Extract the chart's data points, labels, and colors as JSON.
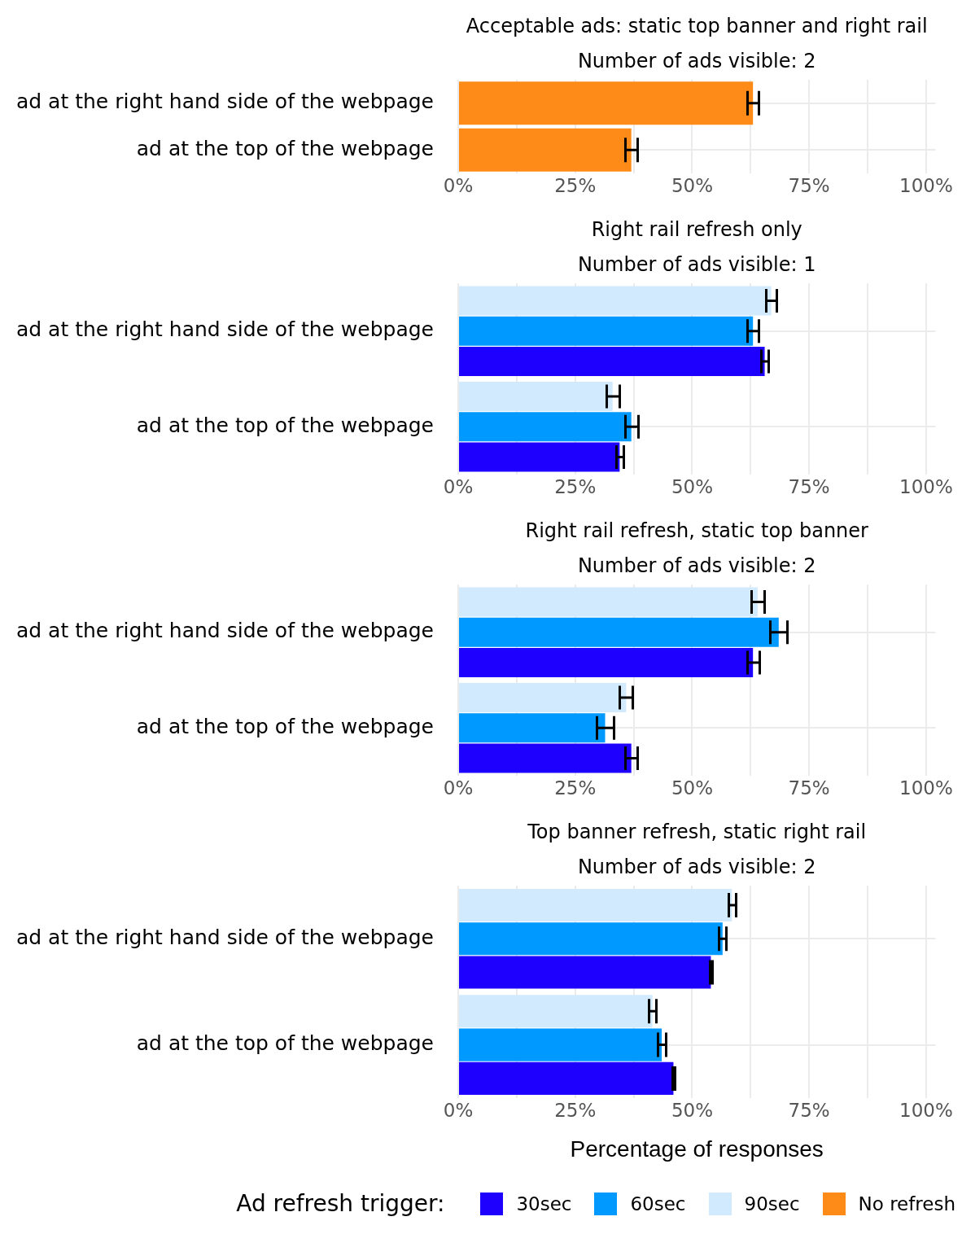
{
  "chart_data": [
    {
      "type": "bar",
      "orientation": "horizontal",
      "title": "Acceptable ads: static top banner and right rail",
      "legend": "bottom",
      "subtitle": "Number of ads visible: 2",
      "categories": [
        "ad at the right hand side of the webpage",
        "ad at the top of the webpage"
      ],
      "series": [
        {
          "name": "No refresh",
          "color": "#fe8b17",
          "values": [
            63.0,
            37.0
          ],
          "errors": [
            1.2,
            1.3
          ]
        }
      ],
      "xlim": [
        0,
        102
      ],
      "xticks": [
        {
          "value": 0,
          "label": "0%"
        },
        {
          "value": 12.5,
          "label": null
        },
        {
          "value": 25,
          "label": "25%"
        },
        {
          "value": 37.5,
          "label": null
        },
        {
          "value": 50,
          "label": "50%"
        },
        {
          "value": 62.5,
          "label": null
        },
        {
          "value": 75,
          "label": "75%"
        },
        {
          "value": 87.5,
          "label": null
        },
        {
          "value": 100,
          "label": "100%"
        }
      ],
      "grid": true
    },
    {
      "type": "bar",
      "orientation": "horizontal",
      "title": "Right rail refresh only",
      "legend": "bottom",
      "subtitle": "Number of ads visible: 1",
      "categories": [
        "ad at the right hand side of the webpage",
        "ad at the top of the webpage"
      ],
      "series": [
        {
          "name": "30sec",
          "color": "#1e00ff",
          "values": [
            65.5,
            34.5
          ],
          "errors": [
            0.8,
            0.8
          ]
        },
        {
          "name": "60sec",
          "color": "#0099ff",
          "values": [
            63.0,
            37.0
          ],
          "errors": [
            1.25,
            1.4
          ]
        },
        {
          "name": "90sec",
          "color": "#d2eafe",
          "values": [
            66.9,
            33.0
          ],
          "errors": [
            1.2,
            1.4
          ]
        }
      ],
      "xlim": [
        0,
        102
      ],
      "xticks": [
        {
          "value": 0,
          "label": "0%"
        },
        {
          "value": 12.5,
          "label": null
        },
        {
          "value": 25,
          "label": "25%"
        },
        {
          "value": 37.5,
          "label": null
        },
        {
          "value": 50,
          "label": "50%"
        },
        {
          "value": 62.5,
          "label": null
        },
        {
          "value": 75,
          "label": "75%"
        },
        {
          "value": 87.5,
          "label": null
        },
        {
          "value": 100,
          "label": "100%"
        }
      ],
      "grid": true
    },
    {
      "type": "bar",
      "orientation": "horizontal",
      "title": "Right rail refresh, static top banner",
      "legend": "bottom",
      "subtitle": "Number of ads visible: 2",
      "categories": [
        "ad at the right hand side of the webpage",
        "ad at the top of the webpage"
      ],
      "series": [
        {
          "name": "30sec",
          "color": "#1e00ff",
          "values": [
            63.0,
            37.0
          ],
          "errors": [
            1.3,
            1.3
          ]
        },
        {
          "name": "60sec",
          "color": "#0099ff",
          "values": [
            68.5,
            31.4
          ],
          "errors": [
            1.8,
            1.8
          ]
        },
        {
          "name": "90sec",
          "color": "#d2eafe",
          "values": [
            64.0,
            35.9
          ],
          "errors": [
            1.4,
            1.4
          ]
        }
      ],
      "xlim": [
        0,
        102
      ],
      "xticks": [
        {
          "value": 0,
          "label": "0%"
        },
        {
          "value": 12.5,
          "label": null
        },
        {
          "value": 25,
          "label": "25%"
        },
        {
          "value": 37.5,
          "label": null
        },
        {
          "value": 50,
          "label": "50%"
        },
        {
          "value": 62.5,
          "label": null
        },
        {
          "value": 75,
          "label": "75%"
        },
        {
          "value": 87.5,
          "label": null
        },
        {
          "value": 100,
          "label": "100%"
        }
      ],
      "grid": true
    },
    {
      "type": "bar",
      "orientation": "horizontal",
      "title": "Top banner refresh, static right rail",
      "subtitle": "Number of ads visible: 2",
      "xlabel": "Percentage of responses",
      "legend_title": "Ad refresh trigger:",
      "legend": "bottom",
      "categories": [
        "ad at the right hand side of the webpage",
        "ad at the top of the webpage"
      ],
      "series": [
        {
          "name": "30sec",
          "color": "#1e00ff",
          "values": [
            54.0,
            46.0
          ],
          "errors": [
            0.3,
            0.3
          ]
        },
        {
          "name": "60sec",
          "color": "#0099ff",
          "values": [
            56.5,
            43.5
          ],
          "errors": [
            0.8,
            0.8
          ]
        },
        {
          "name": "90sec",
          "color": "#d2eafe",
          "values": [
            58.5,
            41.5
          ],
          "errors": [
            0.8,
            0.8
          ]
        }
      ],
      "xlim": [
        0,
        102
      ],
      "xticks": [
        {
          "value": 0,
          "label": "0%"
        },
        {
          "value": 12.5,
          "label": null
        },
        {
          "value": 25,
          "label": "25%"
        },
        {
          "value": 37.5,
          "label": null
        },
        {
          "value": 50,
          "label": "50%"
        },
        {
          "value": 62.5,
          "label": null
        },
        {
          "value": 75,
          "label": "75%"
        },
        {
          "value": 87.5,
          "label": null
        },
        {
          "value": 100,
          "label": "100%"
        }
      ],
      "grid": true
    }
  ]
}
